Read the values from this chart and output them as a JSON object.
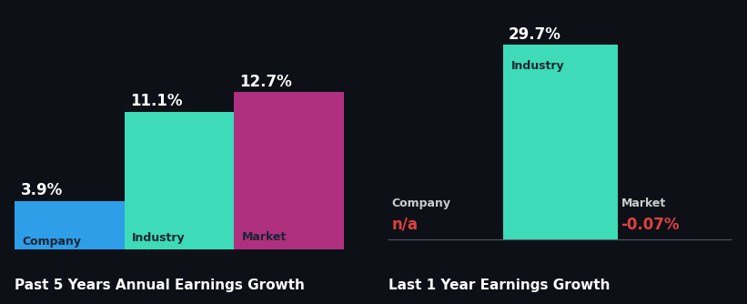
{
  "background_color": "#0d1117",
  "chart1_title": "Past 5 Years Annual Earnings Growth",
  "chart2_title": "Last 1 Year Earnings Growth",
  "chart1_bars": [
    {
      "label": "Company",
      "value": 3.9,
      "color": "#2E9EE8",
      "value_label": "3.9%"
    },
    {
      "label": "Industry",
      "value": 11.1,
      "color": "#3DDBB8",
      "value_label": "11.1%"
    },
    {
      "label": "Market",
      "value": 12.7,
      "color": "#B03080",
      "value_label": "12.7%"
    }
  ],
  "chart2_bars": [
    {
      "label": "Company",
      "value": null,
      "color": null,
      "value_label": "n/a",
      "value_color": "#e04040"
    },
    {
      "label": "Industry",
      "value": 29.7,
      "color": "#3DDBB8",
      "value_label": "29.7%",
      "value_color": "#ffffff"
    },
    {
      "label": "Market",
      "value": null,
      "color": null,
      "value_label": "-0.07%",
      "value_color": "#e04040"
    }
  ],
  "title_color": "#ffffff",
  "label_inside_color": "#1a2535",
  "label_outside_color": "#cccccc",
  "value_color_default": "#ffffff",
  "title_fontsize": 11,
  "label_fontsize": 9,
  "value_fontsize": 12
}
